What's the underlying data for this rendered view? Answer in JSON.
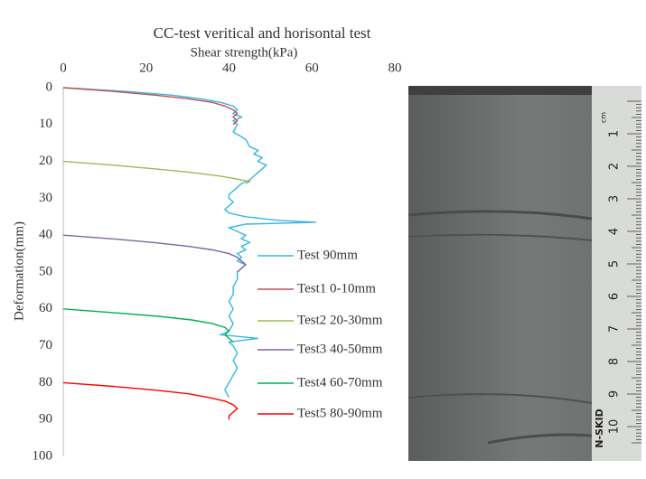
{
  "chart_data": {
    "type": "line",
    "title": "CC-test veritical and horisontal test",
    "xlabel": "Shear strength(kPa)",
    "ylabel": "Deformation(mm)",
    "xlim": [
      0,
      80
    ],
    "xticks": [
      0,
      20,
      40,
      60,
      80
    ],
    "ylim": [
      0,
      100
    ],
    "yticks": [
      0,
      10,
      20,
      30,
      40,
      50,
      60,
      70,
      80,
      90,
      100
    ],
    "y_inverted": true,
    "grid": false,
    "legend": "right",
    "series": [
      {
        "name": "Test 90mm",
        "color": "#35b6e6",
        "y": [
          0,
          1,
          2,
          3,
          4,
          5,
          6,
          7,
          8,
          9,
          10,
          12,
          14,
          16,
          17,
          18,
          19,
          20,
          21,
          22,
          23,
          24,
          25,
          26,
          27,
          28,
          29,
          30,
          31,
          32,
          33,
          34,
          35,
          36,
          36.5,
          37,
          38,
          39,
          40,
          41,
          42,
          43,
          44,
          45,
          46,
          47,
          48,
          49,
          50,
          52,
          54,
          56,
          58,
          60,
          62,
          64,
          66,
          67,
          68,
          69,
          70,
          72,
          74,
          76,
          78,
          80,
          82,
          84
        ],
        "values": [
          0,
          15,
          26,
          33,
          38,
          41,
          42,
          41,
          43,
          41,
          42,
          41,
          44,
          45,
          47,
          46,
          48,
          47,
          49,
          48,
          47,
          46,
          45,
          43,
          42,
          41,
          40,
          40,
          41,
          40,
          39,
          40,
          44,
          52,
          61,
          44,
          40,
          42,
          44,
          43,
          45,
          43,
          44,
          42,
          43,
          42,
          44,
          43,
          42,
          42,
          41,
          41,
          40,
          41,
          40,
          41,
          40,
          38,
          47,
          40,
          41,
          42,
          41,
          42,
          41,
          40,
          39,
          40
        ]
      },
      {
        "name": "Test1 0-10mm",
        "color": "#c0504d",
        "y": [
          0,
          1,
          2,
          3,
          4,
          5,
          6,
          7,
          8,
          9,
          10
        ],
        "values": [
          0,
          12,
          22,
          30,
          36,
          39,
          41,
          42,
          41,
          42,
          41
        ]
      },
      {
        "name": "Test2 20-30mm",
        "color": "#9bbb59",
        "y": [
          20,
          21,
          22,
          23,
          24,
          25,
          25.5,
          26
        ],
        "values": [
          0,
          12,
          22,
          31,
          38,
          43,
          45,
          44
        ]
      },
      {
        "name": "Test3 40-50mm",
        "color": "#8064a2",
        "y": [
          40,
          41,
          42,
          43,
          44,
          45,
          46,
          47,
          48,
          49,
          50
        ],
        "values": [
          0,
          12,
          22,
          30,
          36,
          40,
          42,
          43,
          44,
          43,
          42
        ]
      },
      {
        "name": "Test4 60-70mm",
        "color": "#00b050",
        "y": [
          60,
          61,
          62,
          63,
          64,
          65,
          66,
          67,
          68,
          69
        ],
        "values": [
          0,
          12,
          23,
          31,
          36,
          39,
          40,
          39,
          40,
          41
        ]
      },
      {
        "name": "Test5 80-90mm",
        "color": "#ff0000",
        "y": [
          80,
          81,
          82,
          83,
          84,
          85,
          86,
          87,
          88,
          89,
          90
        ],
        "values": [
          0,
          12,
          22,
          30,
          35,
          39,
          41,
          42,
          41,
          40,
          40
        ]
      }
    ]
  },
  "photo": {
    "ruler_labels": [
      "1",
      "2",
      "3",
      "4",
      "5",
      "6",
      "7",
      "8",
      "9",
      "10"
    ],
    "unit": "cm",
    "brand": "N-SKID"
  }
}
